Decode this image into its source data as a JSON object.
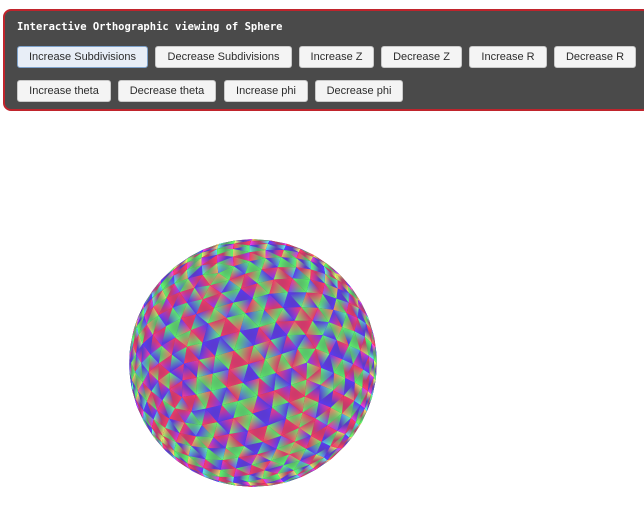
{
  "title": "Interactive Orthographic viewing of Sphere",
  "buttons_row1": [
    "Increase Subdivisions",
    "Decrease Subdivisions",
    "Increase Z",
    "Decrease Z",
    "Increase R",
    "Decrease R"
  ],
  "buttons_row2": [
    "Increase theta",
    "Decrease theta",
    "Increase phi",
    "Decrease phi"
  ],
  "colors": {
    "panel_bg": "#4a4a4a",
    "panel_border": "#c0242c",
    "vertex_red": "#ff0000",
    "vertex_green": "#00ff00",
    "vertex_blue": "#0000ff"
  }
}
